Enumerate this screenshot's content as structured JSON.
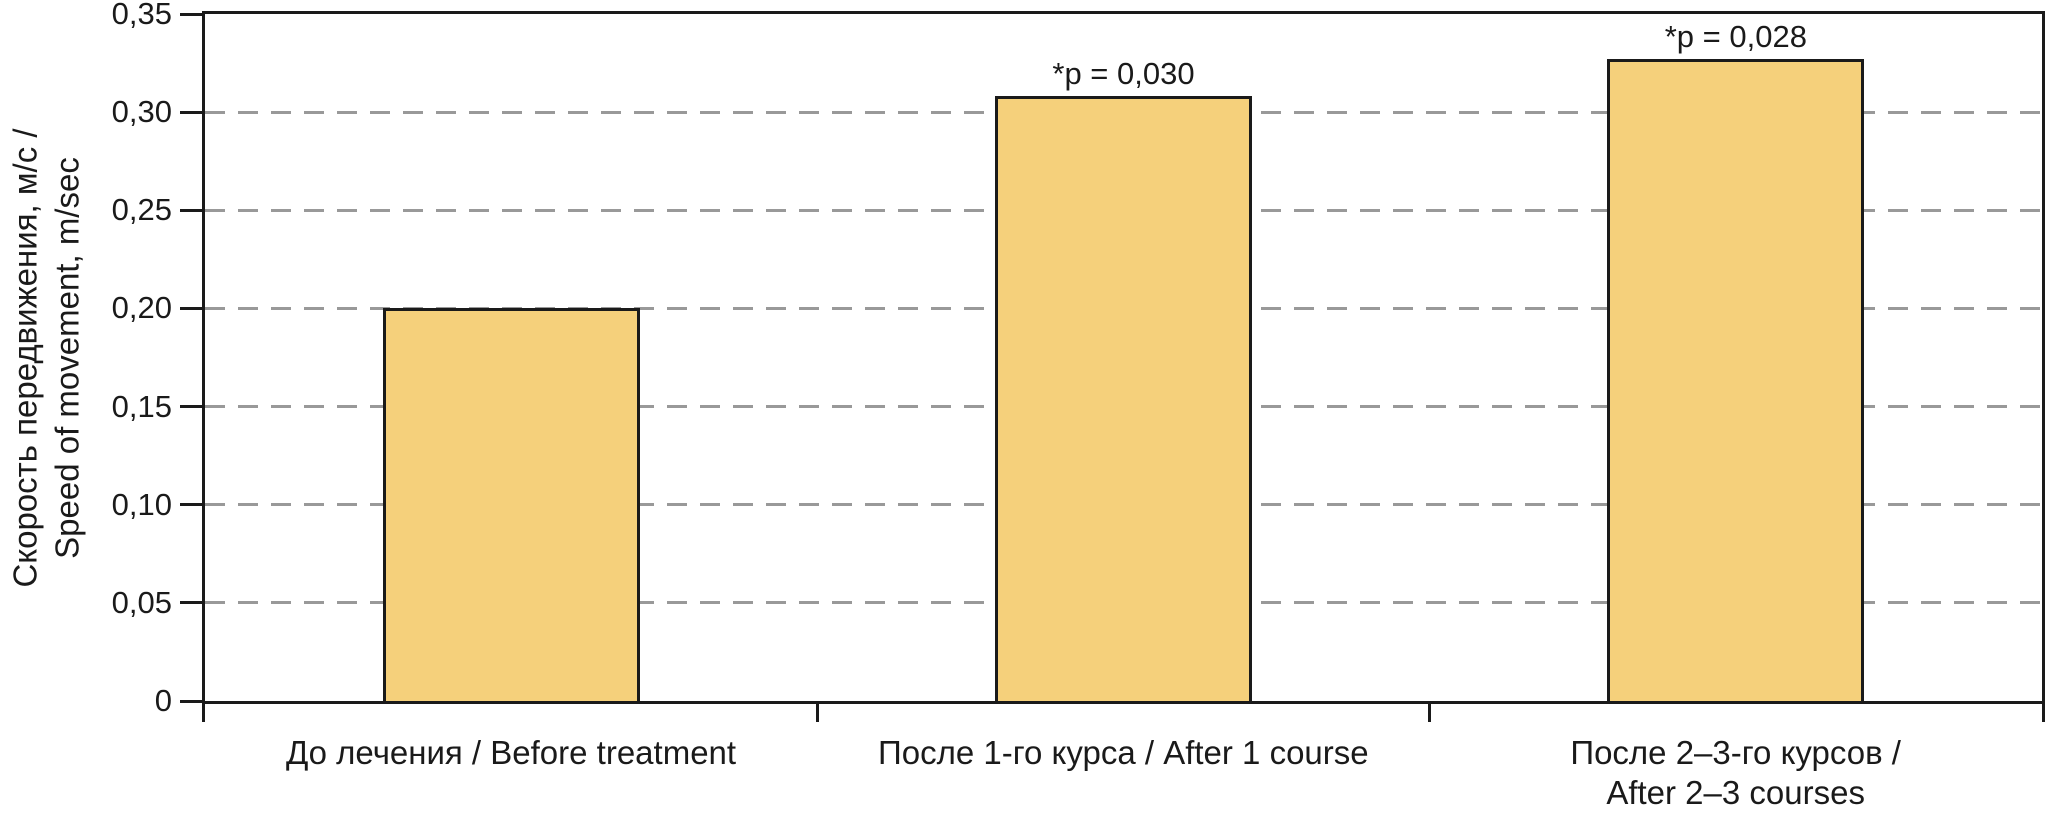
{
  "chart_data": {
    "type": "bar",
    "title": "",
    "ylabel": "Скорость передвижения, м/с /\nSpeed of movement, m/sec",
    "xlabel": "",
    "ylim": [
      0,
      0.35
    ],
    "ytick_step": 0.05,
    "ytick_labels": [
      "0",
      "0,05",
      "0,10",
      "0,15",
      "0,20",
      "0,25",
      "0,30",
      "0,35"
    ],
    "categories": [
      "До лечения / Before treatment",
      "После 1-го курса / After 1 course",
      "После 2–3-го курсов /\nAfter 2–3 courses"
    ],
    "values": [
      0.2,
      0.308,
      0.327
    ],
    "annotations": [
      "",
      "*p = 0,030",
      "*p = 0,028"
    ],
    "grid_on": true,
    "legend_position": "none",
    "colors": {
      "bar_fill": "#F5D07B",
      "bar_border": "#1A1A1A",
      "gridline": "#999999",
      "axis": "#1A1A1A",
      "text": "#1A1A1A"
    }
  }
}
